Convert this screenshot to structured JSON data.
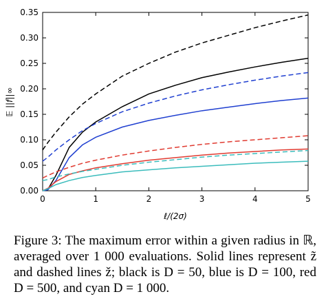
{
  "chart_data": {
    "type": "line",
    "x_label": "ℓ/(2σ)",
    "y_label": "𝔼 ||f||∞",
    "caption": "Figure 3: The maximum error within a given radius in ℝ, averaged over 1 000 evaluations. Solid lines represent z̃ and dashed lines ž; black is D = 50, blue is D = 100, red D = 500, and cyan D = 1 000.",
    "x": [
      0,
      0.1,
      0.25,
      0.5,
      0.75,
      1,
      1.5,
      2,
      2.5,
      3,
      3.5,
      4,
      4.5,
      5
    ],
    "xlim": [
      0,
      5
    ],
    "xticks": [
      0,
      1,
      2,
      3,
      4,
      5
    ],
    "ylim": [
      0,
      0.35
    ],
    "yticks": [
      {
        "value": 0,
        "label": "0.00"
      },
      {
        "value": 0.05,
        "label": "0.05"
      },
      {
        "value": 0.1,
        "label": "0.10"
      },
      {
        "value": 0.15,
        "label": "0.15"
      },
      {
        "value": 0.2,
        "label": "0.20"
      },
      {
        "value": 0.25,
        "label": "0.25"
      },
      {
        "value": 0.3,
        "label": "0.30"
      },
      {
        "value": 0.35,
        "label": "0.35"
      }
    ],
    "grid": false,
    "series": [
      {
        "color": "#000000",
        "dashed": true,
        "values": [
          0.08,
          0.095,
          0.115,
          0.145,
          0.17,
          0.19,
          0.225,
          0.25,
          0.272,
          0.29,
          0.305,
          0.32,
          0.333,
          0.345
        ]
      },
      {
        "color": "#000000",
        "dashed": false,
        "values": [
          0,
          0.003,
          0.03,
          0.085,
          0.115,
          0.135,
          0.165,
          0.19,
          0.207,
          0.222,
          0.233,
          0.243,
          0.252,
          0.26
        ]
      },
      {
        "color": "#1f3fd0",
        "dashed": true,
        "values": [
          0.058,
          0.066,
          0.08,
          0.1,
          0.118,
          0.132,
          0.155,
          0.172,
          0.186,
          0.198,
          0.208,
          0.217,
          0.225,
          0.232
        ]
      },
      {
        "color": "#1f3fd0",
        "dashed": false,
        "values": [
          0,
          0.002,
          0.02,
          0.065,
          0.09,
          0.105,
          0.125,
          0.138,
          0.148,
          0.157,
          0.164,
          0.171,
          0.177,
          0.182
        ]
      },
      {
        "color": "#e03a30",
        "dashed": true,
        "values": [
          0.025,
          0.03,
          0.037,
          0.046,
          0.054,
          0.06,
          0.07,
          0.078,
          0.085,
          0.091,
          0.096,
          0.1,
          0.104,
          0.108
        ]
      },
      {
        "color": "#e03a30",
        "dashed": false,
        "values": [
          0,
          0.005,
          0.018,
          0.032,
          0.039,
          0.045,
          0.053,
          0.06,
          0.065,
          0.07,
          0.074,
          0.077,
          0.08,
          0.082
        ]
      },
      {
        "color": "#3bbcbc",
        "dashed": true,
        "values": [
          0.02,
          0.022,
          0.027,
          0.033,
          0.038,
          0.042,
          0.05,
          0.056,
          0.061,
          0.066,
          0.07,
          0.073,
          0.076,
          0.079
        ]
      },
      {
        "color": "#3bbcbc",
        "dashed": false,
        "values": [
          0,
          0.004,
          0.012,
          0.02,
          0.026,
          0.03,
          0.037,
          0.041,
          0.045,
          0.048,
          0.051,
          0.054,
          0.056,
          0.058
        ]
      }
    ]
  }
}
